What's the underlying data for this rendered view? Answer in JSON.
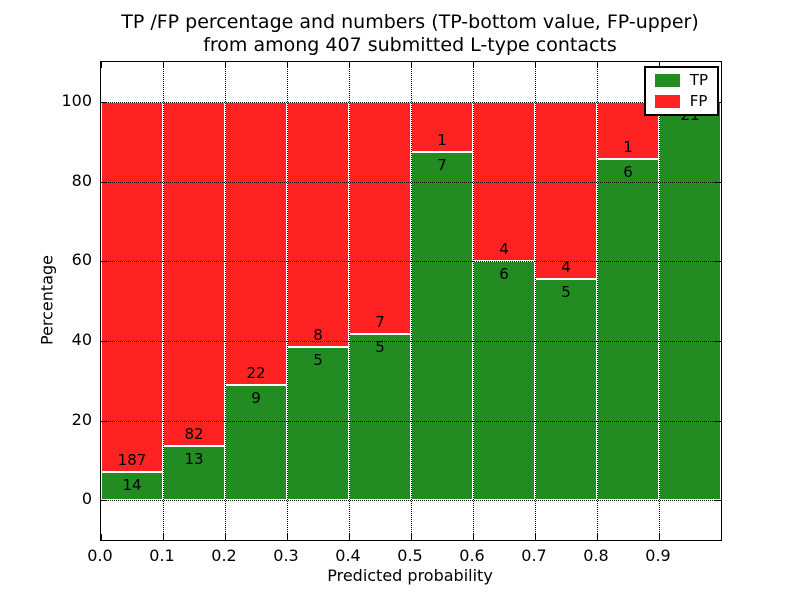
{
  "figure": {
    "title_line1": "TP /FP percentage and numbers (TP-bottom value, FP-upper)",
    "title_line2": "from among 407 submitted L-type contacts",
    "xlabel": "Predicted probability",
    "ylabel": "Percentage"
  },
  "chart_data": {
    "type": "bar",
    "stacked": true,
    "normalized_to_percent": true,
    "title": "TP /FP percentage and numbers (TP-bottom value, FP-upper) from among 407 submitted L-type contacts",
    "xlabel": "Predicted probability",
    "ylabel": "Percentage",
    "total_submitted": 407,
    "x_bins": [
      0.0,
      0.1,
      0.2,
      0.3,
      0.4,
      0.5,
      0.6,
      0.7,
      0.8,
      0.9
    ],
    "bin_width": 0.1,
    "series": [
      {
        "name": "TP",
        "color": "#228b22",
        "counts": [
          14,
          13,
          9,
          5,
          5,
          7,
          6,
          5,
          6,
          21
        ]
      },
      {
        "name": "FP",
        "color": "#ff2222",
        "counts": [
          187,
          82,
          22,
          8,
          7,
          1,
          4,
          4,
          1,
          0
        ]
      }
    ],
    "tp_percent": [
      7.0,
      13.7,
      29.0,
      38.5,
      41.7,
      87.5,
      60.0,
      55.6,
      85.7,
      100.0
    ],
    "xticks": [
      "0.0",
      "0.1",
      "0.2",
      "0.3",
      "0.4",
      "0.5",
      "0.6",
      "0.7",
      "0.8",
      "0.9"
    ],
    "yticks": [
      0,
      20,
      40,
      60,
      80,
      100
    ],
    "xlim": [
      0.0,
      1.0
    ],
    "ylim": [
      -10,
      110
    ],
    "grid": "dotted black, both axes, drawn over bars",
    "bar_edge_color": "#ffffff",
    "legend": {
      "position": "upper right",
      "entries": [
        {
          "label": "TP",
          "color": "#228b22"
        },
        {
          "label": "FP",
          "color": "#ff2222"
        }
      ]
    }
  }
}
